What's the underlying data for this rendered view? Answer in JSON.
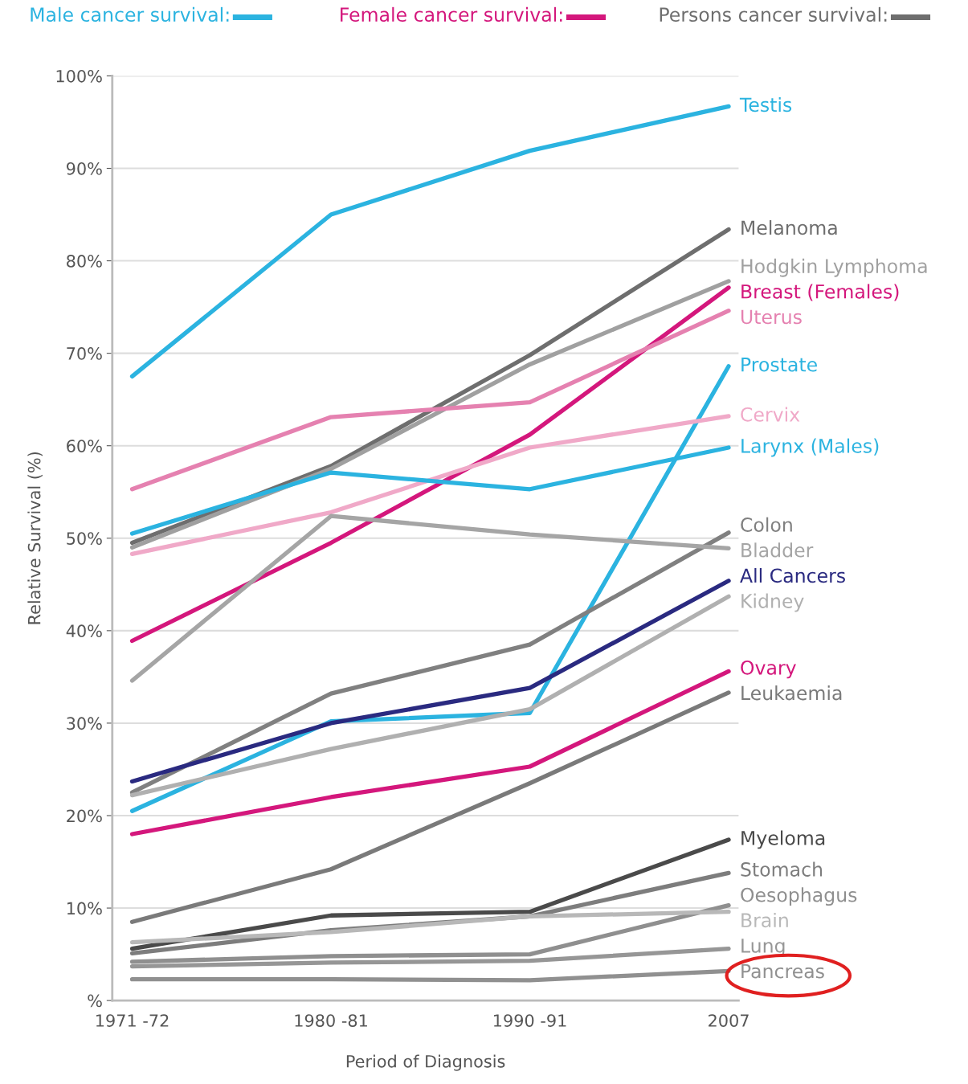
{
  "chart_data": {
    "type": "line",
    "xlabel": "Period of Diagnosis",
    "ylabel": "Relative Survival (%)",
    "categories": [
      "1971 -72",
      "1980 -81",
      "1990 -91",
      "2007"
    ],
    "ylim": [
      0,
      100
    ],
    "yticks": [
      {
        "value": 0,
        "label": "%"
      },
      {
        "value": 10,
        "label": "10%"
      },
      {
        "value": 20,
        "label": "20%"
      },
      {
        "value": 30,
        "label": "30%"
      },
      {
        "value": 40,
        "label": "40%"
      },
      {
        "value": 50,
        "label": "50%"
      },
      {
        "value": 60,
        "label": "60%"
      },
      {
        "value": 70,
        "label": "70%"
      },
      {
        "value": 80,
        "label": "80%"
      },
      {
        "value": 90,
        "label": "90%"
      },
      {
        "value": 100,
        "label": "100%"
      }
    ],
    "grid": "y",
    "legend": false,
    "marker": "none",
    "line_style": "solid",
    "annotations": [
      "Male cancer survival:",
      "Female cancer survival:",
      "Persons cancer survival:"
    ],
    "series": [
      {
        "name": "Testis",
        "color": "#2bb3e0",
        "values": [
          67.5,
          85.0,
          91.9,
          96.7
        ]
      },
      {
        "name": "Melanoma",
        "color": "#6e6e6e",
        "values": [
          49.5,
          57.8,
          69.8,
          83.4
        ]
      },
      {
        "name": "Hodgkin Lymphoma",
        "color": "#a0a0a0",
        "values": [
          49.0,
          57.5,
          68.8,
          77.8
        ]
      },
      {
        "name": "Breast (Females)",
        "color": "#d4177c",
        "values": [
          38.9,
          49.5,
          61.2,
          77.1
        ]
      },
      {
        "name": "Uterus",
        "color": "#e581b0",
        "values": [
          55.3,
          63.1,
          64.7,
          74.6
        ]
      },
      {
        "name": "Prostate",
        "color": "#2bb3e0",
        "values": [
          20.5,
          30.2,
          31.1,
          68.6
        ]
      },
      {
        "name": "Cervix",
        "color": "#f0a9c8",
        "values": [
          48.3,
          52.8,
          59.8,
          63.2
        ]
      },
      {
        "name": "Larynx (Males)",
        "color": "#2bb3e0",
        "values": [
          50.5,
          57.1,
          55.3,
          59.8
        ]
      },
      {
        "name": "Colon",
        "color": "#808080",
        "values": [
          22.5,
          33.2,
          38.5,
          50.6
        ]
      },
      {
        "name": "Bladder",
        "color": "#a5a5a5",
        "values": [
          34.6,
          52.4,
          50.4,
          48.9
        ]
      },
      {
        "name": "All Cancers",
        "color": "#2a2a80",
        "values": [
          23.7,
          30.0,
          33.8,
          45.4
        ]
      },
      {
        "name": "Kidney",
        "color": "#b0b0b0",
        "values": [
          22.2,
          27.2,
          31.5,
          43.7
        ]
      },
      {
        "name": "Ovary",
        "color": "#d4177c",
        "values": [
          18.0,
          22.0,
          25.3,
          35.6
        ]
      },
      {
        "name": "Leukaemia",
        "color": "#7a7a7a",
        "values": [
          8.5,
          14.2,
          23.5,
          33.3
        ]
      },
      {
        "name": "Myeloma",
        "color": "#4a4a4a",
        "values": [
          5.6,
          9.2,
          9.6,
          17.4
        ]
      },
      {
        "name": "Stomach",
        "color": "#7d7d7d",
        "values": [
          5.1,
          7.6,
          9.1,
          13.8
        ]
      },
      {
        "name": "Oesophagus",
        "color": "#8f8f8f",
        "values": [
          4.2,
          4.8,
          5.0,
          10.3
        ]
      },
      {
        "name": "Brain",
        "color": "#b8b8b8",
        "values": [
          6.3,
          7.4,
          9.1,
          9.6
        ]
      },
      {
        "name": "Lung",
        "color": "#969696",
        "values": [
          3.7,
          4.1,
          4.3,
          5.6
        ]
      },
      {
        "name": "Pancreas",
        "color": "#909090",
        "values": [
          2.3,
          2.3,
          2.2,
          3.2
        ]
      }
    ]
  }
}
